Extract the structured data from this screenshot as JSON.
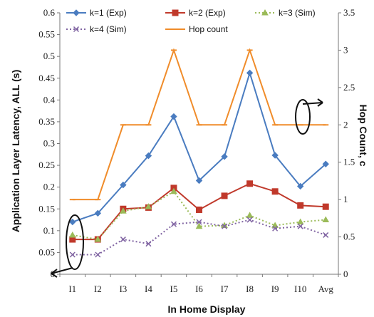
{
  "chart_data": {
    "type": "line",
    "categories": [
      "I1",
      "I2",
      "I3",
      "I4",
      "I5",
      "I6",
      "I7",
      "I8",
      "I9",
      "I10",
      "Avg"
    ],
    "xlabel": "In Home Display",
    "ylabel": "Application Layer Latency, ALL (s)",
    "y2label": "Hop Count, c",
    "ylim": [
      0,
      0.6
    ],
    "y2lim": [
      0,
      3.5
    ],
    "yticks": [
      "0",
      "0.05",
      "0.1",
      "0.15",
      "0.2",
      "0.25",
      "0.3",
      "0.35",
      "0.4",
      "0.45",
      "0.5",
      "0.55",
      "0.6"
    ],
    "y2ticks": [
      "0",
      "0.5",
      "1",
      "1.5",
      "2",
      "2.5",
      "3",
      "3.5"
    ],
    "grid": false,
    "legend_position": "top",
    "series": [
      {
        "name": "k=1 (Exp)",
        "axis": "left",
        "color": "#4a7cc0",
        "marker": "diamond",
        "dash": "solid",
        "values": [
          0.12,
          0.14,
          0.205,
          0.272,
          0.362,
          0.215,
          0.27,
          0.462,
          0.273,
          0.202,
          0.253
        ]
      },
      {
        "name": "k=2 (Exp)",
        "axis": "left",
        "color": "#c0392b",
        "marker": "square",
        "dash": "solid",
        "values": [
          0.08,
          0.08,
          0.15,
          0.153,
          0.198,
          0.148,
          0.18,
          0.208,
          0.19,
          0.158,
          0.155
        ]
      },
      {
        "name": "k=3 (Sim)",
        "axis": "left",
        "color": "#9bbb59",
        "marker": "triangle",
        "dash": "dotted",
        "values": [
          0.09,
          0.08,
          0.145,
          0.155,
          0.19,
          0.11,
          0.112,
          0.135,
          0.112,
          0.12,
          0.125
        ]
      },
      {
        "name": "k=4 (Sim)",
        "axis": "left",
        "color": "#8064a2",
        "marker": "x",
        "dash": "dotted",
        "values": [
          0.045,
          0.045,
          0.08,
          0.07,
          0.115,
          0.12,
          0.11,
          0.125,
          0.105,
          0.11,
          0.09
        ]
      },
      {
        "name": "Hop count",
        "axis": "right",
        "color": "#f08c2a",
        "marker": "dash",
        "dash": "solid",
        "values": [
          1,
          1,
          2,
          2,
          3,
          2,
          2,
          3,
          2,
          2,
          2
        ]
      }
    ]
  }
}
